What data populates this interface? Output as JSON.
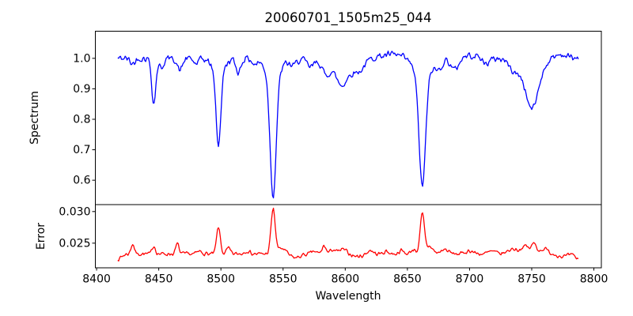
{
  "figure": {
    "background": "#ffffff",
    "axes_color": "#000000",
    "text_color": "#000000"
  },
  "chart_data": {
    "type": "line",
    "title": "20060701_1505m25_044",
    "xlabel": "Wavelength",
    "xlim": [
      8399,
      8806
    ],
    "grid": false,
    "legend": "none",
    "xticks": [
      {
        "v": 8400,
        "label": "8400"
      },
      {
        "v": 8450,
        "label": "8450"
      },
      {
        "v": 8500,
        "label": "8500"
      },
      {
        "v": 8550,
        "label": "8550"
      },
      {
        "v": 8600,
        "label": "8600"
      },
      {
        "v": 8650,
        "label": "8650"
      },
      {
        "v": 8700,
        "label": "8700"
      },
      {
        "v": 8750,
        "label": "8750"
      },
      {
        "v": 8800,
        "label": "8800"
      }
    ],
    "x_range_data": [
      8417,
      8788
    ],
    "sample_step": 0.75,
    "panels": [
      {
        "name": "spectrum",
        "ylabel": "Spectrum",
        "color": "#0000ff",
        "ylim": [
          0.52,
          1.089
        ],
        "yticks": [
          {
            "v": 1.0,
            "label": "1.0"
          },
          {
            "v": 0.9,
            "label": "0.9"
          },
          {
            "v": 0.8,
            "label": "0.8"
          },
          {
            "v": 0.7,
            "label": "0.7"
          },
          {
            "v": 0.6,
            "label": "0.6"
          }
        ],
        "base": 1.0,
        "noise_amplitude": 0.008,
        "noise_scales_with_value": true,
        "seed": 42,
        "components": [
          {
            "c": 8429,
            "a": -0.018,
            "s": 2.0
          },
          {
            "c": 8446,
            "a": -0.15,
            "s": 1.6
          },
          {
            "c": 8452,
            "a": -0.03,
            "s": 2.0
          },
          {
            "c": 8467,
            "a": -0.04,
            "s": 2.0
          },
          {
            "c": 8480,
            "a": -0.018,
            "s": 2.0
          },
          {
            "c": 8498,
            "a": -0.24,
            "s": 1.9
          },
          {
            "c": 8498,
            "a": -0.045,
            "s": 5.0
          },
          {
            "c": 8514,
            "a": -0.045,
            "s": 2.0
          },
          {
            "c": 8527,
            "a": -0.018,
            "s": 2.0
          },
          {
            "c": 8542,
            "a": -0.395,
            "s": 2.4
          },
          {
            "c": 8542,
            "a": -0.06,
            "s": 6.0
          },
          {
            "c": 8558,
            "a": -0.022,
            "s": 3.0
          },
          {
            "c": 8572,
            "a": -0.028,
            "s": 3.0
          },
          {
            "c": 8584,
            "a": -0.04,
            "s": 3.0
          },
          {
            "c": 8598,
            "a": -0.065,
            "s": 8.0
          },
          {
            "c": 8597,
            "a": -0.025,
            "s": 3.0
          },
          {
            "c": 8612,
            "a": -0.028,
            "s": 4.0
          },
          {
            "c": 8638,
            "a": 0.012,
            "s": 10.0
          },
          {
            "c": 8662,
            "a": -0.365,
            "s": 2.6
          },
          {
            "c": 8662,
            "a": -0.055,
            "s": 7.0
          },
          {
            "c": 8675,
            "a": -0.028,
            "s": 3.0
          },
          {
            "c": 8688,
            "a": -0.038,
            "s": 3.0
          },
          {
            "c": 8702,
            "a": 0.01,
            "s": 6.0
          },
          {
            "c": 8713,
            "a": -0.018,
            "s": 3.0
          },
          {
            "c": 8736,
            "a": -0.035,
            "s": 4.0
          },
          {
            "c": 8750,
            "a": -0.135,
            "s": 5.0
          },
          {
            "c": 8751,
            "a": -0.03,
            "s": 10.0
          },
          {
            "c": 8772,
            "a": 0.015,
            "s": 6.0
          }
        ]
      },
      {
        "name": "error",
        "ylabel": "Error",
        "color": "#ff0000",
        "ylim": [
          0.0211,
          0.0311
        ],
        "yticks": [
          {
            "v": 0.03,
            "label": "0.030"
          },
          {
            "v": 0.025,
            "label": "0.025"
          }
        ],
        "base": 0.0233,
        "noise_amplitude": 0.00022,
        "noise_scales_with_value": false,
        "seed": 7,
        "components": [
          {
            "c": 8417,
            "a": -0.0008,
            "s": 3.0
          },
          {
            "c": 8429,
            "a": 0.0016,
            "s": 1.3
          },
          {
            "c": 8446,
            "a": 0.0013,
            "s": 1.3
          },
          {
            "c": 8465,
            "a": 0.0016,
            "s": 1.3
          },
          {
            "c": 8483,
            "a": 0.0004,
            "s": 2.0
          },
          {
            "c": 8498,
            "a": 0.0042,
            "s": 1.5
          },
          {
            "c": 8506,
            "a": 0.0009,
            "s": 1.5
          },
          {
            "c": 8521,
            "a": 0.0005,
            "s": 2.0
          },
          {
            "c": 8542,
            "a": 0.0071,
            "s": 1.7
          },
          {
            "c": 8549,
            "a": 0.0009,
            "s": 3.0
          },
          {
            "c": 8560,
            "a": -0.0006,
            "s": 4.0
          },
          {
            "c": 8575,
            "a": 0.0004,
            "s": 2.0
          },
          {
            "c": 8583,
            "a": 0.0013,
            "s": 1.5
          },
          {
            "c": 8590,
            "a": 0.0007,
            "s": 2.0
          },
          {
            "c": 8598,
            "a": 0.0007,
            "s": 3.0
          },
          {
            "c": 8610,
            "a": -0.0004,
            "s": 4.0
          },
          {
            "c": 8620,
            "a": 0.0006,
            "s": 2.0
          },
          {
            "c": 8633,
            "a": 0.0004,
            "s": 2.0
          },
          {
            "c": 8645,
            "a": 0.0005,
            "s": 2.0
          },
          {
            "c": 8655,
            "a": 0.0007,
            "s": 2.0
          },
          {
            "c": 8662,
            "a": 0.0063,
            "s": 1.7
          },
          {
            "c": 8668,
            "a": 0.0012,
            "s": 2.5
          },
          {
            "c": 8680,
            "a": 0.0007,
            "s": 3.0
          },
          {
            "c": 8700,
            "a": 0.0005,
            "s": 3.0
          },
          {
            "c": 8718,
            "a": 0.0004,
            "s": 3.0
          },
          {
            "c": 8735,
            "a": 0.0008,
            "s": 4.0
          },
          {
            "c": 8745,
            "a": 0.0012,
            "s": 3.0
          },
          {
            "c": 8752,
            "a": 0.0016,
            "s": 2.0
          },
          {
            "c": 8760,
            "a": 0.0008,
            "s": 3.0
          },
          {
            "c": 8775,
            "a": -0.0004,
            "s": 4.0
          },
          {
            "c": 8788,
            "a": -0.0008,
            "s": 3.0
          }
        ]
      }
    ]
  }
}
